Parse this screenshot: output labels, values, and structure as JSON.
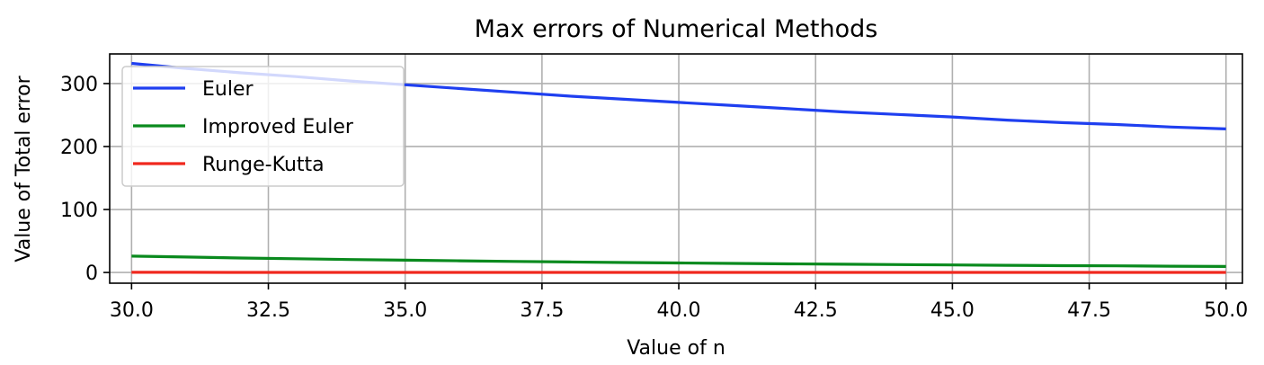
{
  "chart_data": {
    "type": "line",
    "title": "Max errors of Numerical Methods",
    "xlabel": "Value of n",
    "ylabel": "Value of Total error",
    "xlim": [
      29.6,
      50.3
    ],
    "ylim": [
      -17,
      347
    ],
    "xticks": [
      "30.0",
      "32.5",
      "35.0",
      "37.5",
      "40.0",
      "42.5",
      "45.0",
      "47.5",
      "50.0"
    ],
    "xtick_values": [
      30,
      32.5,
      35,
      37.5,
      40,
      42.5,
      45,
      47.5,
      50
    ],
    "yticks": [
      "0",
      "100",
      "200",
      "300"
    ],
    "ytick_values": [
      0,
      100,
      200,
      300
    ],
    "grid": true,
    "legend_position": "upper-left",
    "x": [
      30,
      31,
      32,
      33,
      34,
      35,
      36,
      37,
      38,
      39,
      40,
      41,
      42,
      43,
      44,
      45,
      46,
      47,
      48,
      49,
      50
    ],
    "series": [
      {
        "name": "Euler",
        "color": "#1f3ff0",
        "values": [
          332,
          324,
          317,
          311,
          304,
          298,
          292,
          286,
          280,
          275,
          270,
          265,
          260,
          255,
          251,
          247,
          242,
          238,
          235,
          231,
          228
        ]
      },
      {
        "name": "Improved Euler",
        "color": "#0a8a1e",
        "values": [
          26,
          24.5,
          23,
          21.8,
          20.6,
          19.5,
          18.5,
          17.6,
          16.7,
          15.9,
          15.1,
          14.4,
          13.7,
          13.1,
          12.5,
          12,
          11.4,
          10.9,
          10.5,
          10,
          9.6
        ]
      },
      {
        "name": "Runge-Kutta",
        "color": "#f0281e",
        "values": [
          0.3,
          0.3,
          0.2,
          0.2,
          0.2,
          0.2,
          0.2,
          0.2,
          0.1,
          0.1,
          0.1,
          0.1,
          0.1,
          0.1,
          0.1,
          0.1,
          0.1,
          0.1,
          0.1,
          0.1,
          0.1
        ]
      }
    ]
  }
}
